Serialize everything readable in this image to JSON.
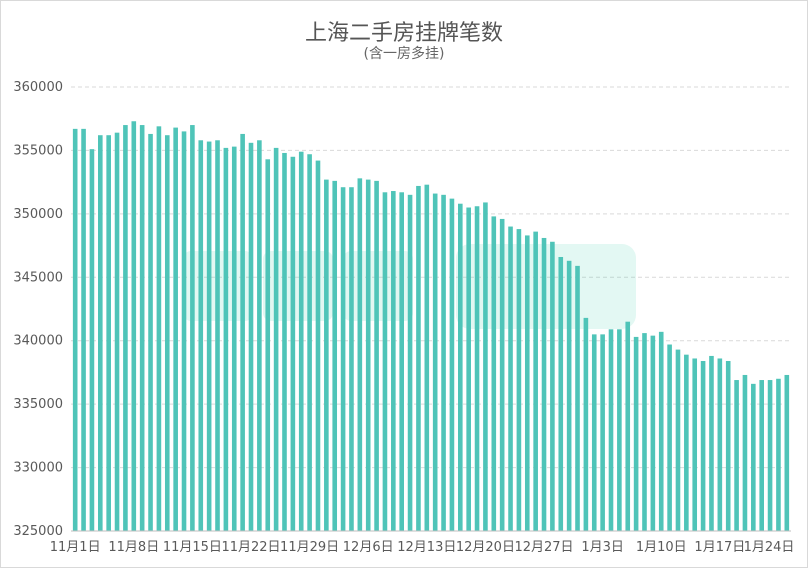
{
  "chart_data": {
    "type": "bar",
    "title": "上海二手房挂牌笔数",
    "subtitle": "(含一房多挂)",
    "xlabel": "",
    "ylabel": "",
    "ylim": [
      325000,
      360000
    ],
    "yticks": [
      "325000",
      "330000",
      "335000",
      "340000",
      "345000",
      "350000",
      "355000",
      "360000"
    ],
    "xtick_labels": [
      "11月1日",
      "11月8日",
      "11月15日",
      "11月22日",
      "11月29日",
      "12月6日",
      "12月13日",
      "12月20日",
      "12月27日",
      "1月3日",
      "1月10日",
      "1月17日",
      "1月24日"
    ],
    "grid": true,
    "legend": "none",
    "bar_color": "#4fc4b8",
    "start_date": "11月1日",
    "values": [
      356700,
      356700,
      355100,
      356200,
      356200,
      356400,
      357000,
      357300,
      357000,
      356300,
      356900,
      356200,
      356800,
      356500,
      357000,
      355800,
      355700,
      355800,
      355200,
      355300,
      356300,
      355600,
      355800,
      354300,
      355200,
      354800,
      354500,
      354900,
      354700,
      354200,
      352700,
      352600,
      352100,
      352100,
      352800,
      352700,
      352600,
      351700,
      351800,
      351700,
      351500,
      352200,
      352300,
      351600,
      351500,
      351200,
      350800,
      350500,
      350600,
      350900,
      349800,
      349600,
      349000,
      348800,
      348300,
      348600,
      348100,
      347800,
      346600,
      346300,
      345900,
      341800,
      340500,
      340500,
      340900,
      340900,
      341500,
      340300,
      340600,
      340400,
      340700,
      339700,
      339300,
      338900,
      338600,
      338400,
      338800,
      338600,
      338400,
      336900,
      337300,
      336600,
      336900,
      336900,
      337000,
      337300
    ]
  }
}
